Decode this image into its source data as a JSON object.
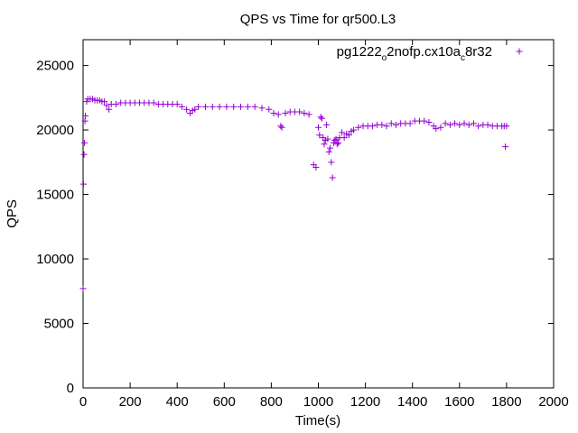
{
  "chart_data": {
    "type": "scatter",
    "title": "QPS vs Time for qr500.L3",
    "xlabel": "Time(s)",
    "ylabel": "QPS",
    "xlim": [
      0,
      2000
    ],
    "ylim": [
      0,
      27000
    ],
    "xticks": [
      0,
      200,
      400,
      600,
      800,
      1000,
      1200,
      1400,
      1600,
      1800,
      2000
    ],
    "yticks": [
      0,
      5000,
      10000,
      15000,
      20000,
      25000
    ],
    "grid": false,
    "legend": {
      "position": "top-right",
      "label_base": "pg1222",
      "label_sub1": "o",
      "label_mid": "2nofp.cx10a",
      "label_sub2": "c",
      "label_end": "8r32"
    },
    "marker": "+",
    "color": "#9400d3",
    "series": [
      {
        "name": "pg1222_o2nofp.cx10a_c8r32",
        "x": [
          0,
          2,
          4,
          6,
          8,
          10,
          15,
          20,
          30,
          40,
          50,
          60,
          70,
          80,
          90,
          100,
          110,
          120,
          140,
          160,
          180,
          200,
          220,
          240,
          260,
          280,
          300,
          320,
          340,
          360,
          380,
          400,
          420,
          440,
          455,
          465,
          475,
          490,
          520,
          550,
          580,
          610,
          640,
          670,
          700,
          730,
          760,
          790,
          810,
          830,
          840,
          845,
          860,
          880,
          900,
          920,
          940,
          960,
          980,
          990,
          1000,
          1005,
          1010,
          1015,
          1020,
          1025,
          1030,
          1035,
          1040,
          1045,
          1050,
          1055,
          1060,
          1065,
          1070,
          1075,
          1080,
          1085,
          1090,
          1100,
          1110,
          1120,
          1130,
          1140,
          1150,
          1170,
          1190,
          1210,
          1230,
          1250,
          1270,
          1290,
          1310,
          1330,
          1350,
          1370,
          1390,
          1410,
          1430,
          1450,
          1470,
          1490,
          1500,
          1520,
          1540,
          1560,
          1580,
          1600,
          1620,
          1640,
          1660,
          1680,
          1700,
          1720,
          1740,
          1760,
          1780,
          1790,
          1795,
          1800
        ],
        "y": [
          7700,
          15800,
          18100,
          19000,
          20700,
          21100,
          22200,
          22400,
          22400,
          22400,
          22300,
          22300,
          22300,
          22200,
          22200,
          21900,
          21600,
          22000,
          22000,
          22100,
          22100,
          22100,
          22100,
          22100,
          22100,
          22100,
          22100,
          22000,
          22000,
          22000,
          22000,
          22000,
          21800,
          21600,
          21300,
          21500,
          21600,
          21800,
          21800,
          21800,
          21800,
          21800,
          21800,
          21800,
          21800,
          21800,
          21700,
          21600,
          21300,
          21200,
          20300,
          20200,
          21300,
          21400,
          21400,
          21400,
          21300,
          21200,
          17300,
          17100,
          20200,
          19600,
          21000,
          20900,
          19400,
          18900,
          19200,
          20400,
          19300,
          18300,
          18600,
          17500,
          16300,
          19000,
          19200,
          19300,
          18900,
          19000,
          19400,
          19800,
          19400,
          19700,
          19600,
          19900,
          20000,
          20200,
          20300,
          20300,
          20300,
          20400,
          20400,
          20300,
          20500,
          20400,
          20500,
          20500,
          20500,
          20700,
          20700,
          20700,
          20600,
          20300,
          20100,
          20200,
          20500,
          20400,
          20500,
          20400,
          20500,
          20400,
          20500,
          20300,
          20400,
          20400,
          20300,
          20300,
          20300,
          20300,
          18700,
          20300
        ]
      }
    ]
  }
}
